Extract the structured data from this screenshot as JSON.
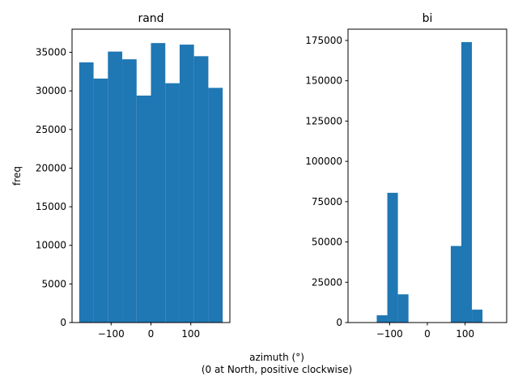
{
  "figure": {
    "xlabel": "azimuth (°)\n(0 at North, positive clockwise)",
    "bar_color": "#1f77b4"
  },
  "chart_data": [
    {
      "type": "bar",
      "title": "rand",
      "ylabel": "freq",
      "xlim": [
        -198,
        198
      ],
      "ylim": [
        0,
        38000
      ],
      "xticks": [
        -100,
        0,
        100
      ],
      "xtick_labels": [
        "−100",
        "0",
        "100"
      ],
      "yticks": [
        0,
        5000,
        10000,
        15000,
        20000,
        25000,
        30000,
        35000
      ],
      "ytick_labels": [
        "0",
        "5000",
        "10000",
        "15000",
        "20000",
        "25000",
        "30000",
        "35000"
      ],
      "bin_edges": [
        -180,
        -144,
        -108,
        -72,
        -36,
        0,
        36,
        72,
        108,
        144,
        180
      ],
      "values": [
        33700,
        31600,
        35100,
        34100,
        29400,
        36200,
        31000,
        36000,
        34500,
        30400
      ]
    },
    {
      "type": "bar",
      "title": "bi",
      "ylabel": "",
      "xlim": [
        -210,
        210
      ],
      "ylim": [
        0,
        182000
      ],
      "xticks": [
        -100,
        0,
        100
      ],
      "xtick_labels": [
        "−100",
        "0",
        "100"
      ],
      "yticks": [
        0,
        25000,
        50000,
        75000,
        100000,
        125000,
        150000,
        175000
      ],
      "ytick_labels": [
        "0",
        "25000",
        "50000",
        "75000",
        "100000",
        "125000",
        "150000",
        "175000"
      ],
      "bin_edges": [
        -190,
        -162,
        -134,
        -106,
        -78,
        -50,
        -22,
        6,
        34,
        62,
        90,
        118,
        146,
        174
      ],
      "values": [
        0,
        0,
        4500,
        80500,
        17500,
        0,
        0,
        0,
        0,
        47500,
        174000,
        8000,
        0
      ]
    }
  ]
}
